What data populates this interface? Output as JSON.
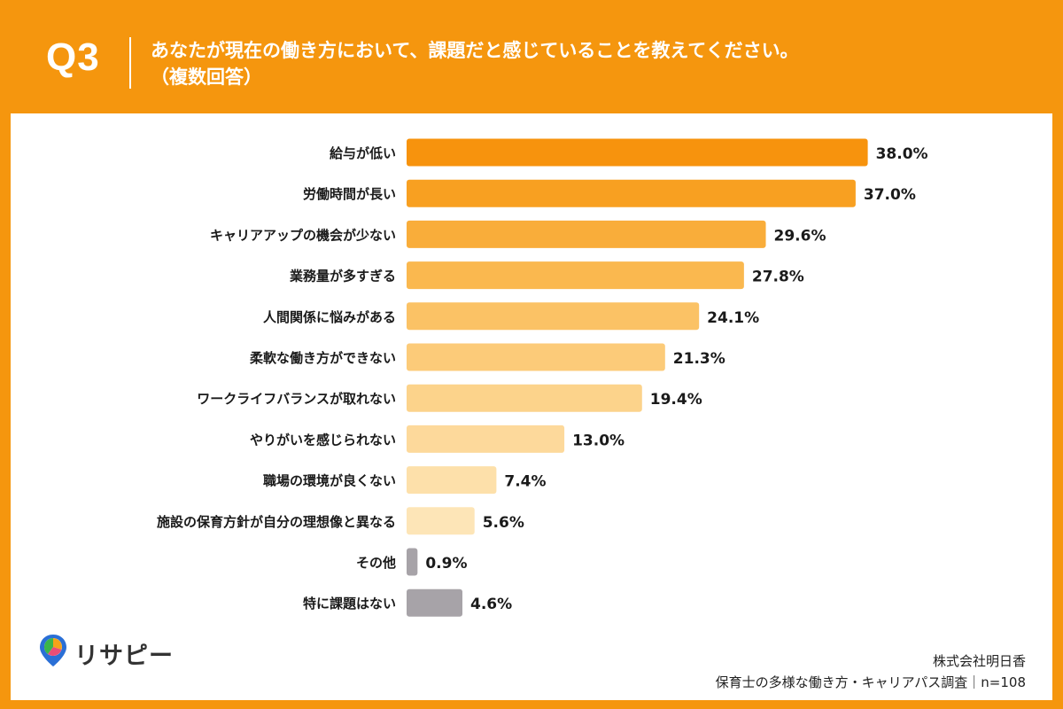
{
  "header": {
    "q_label": "Q3",
    "title_line1": "あなたが現在の働き方において、課題だと感じていることを教えてください。",
    "title_line2": "（複数回答）"
  },
  "colors": {
    "background": "#f5960e",
    "bar_gradient": [
      "#f7930d",
      "#f8a021",
      "#f9ad3a",
      "#fab84f",
      "#fbc265",
      "#fccb79",
      "#fcd38b",
      "#fdd99b",
      "#fde0aa",
      "#fde5b7"
    ],
    "gray_bar": "#a7a3a8"
  },
  "chart_data": {
    "type": "bar",
    "orientation": "horizontal",
    "categories": [
      "給与が低い",
      "労働時間が長い",
      "キャリアアップの機会が少ない",
      "業務量が多すぎる",
      "人間関係に悩みがある",
      "柔軟な働き方ができない",
      "ワークライフバランスが取れない",
      "やりがいを感じられない",
      "職場の環境が良くない",
      "施設の保育方針が自分の理想像と異なる",
      "その他",
      "特に課題はない"
    ],
    "values": [
      38.0,
      37.0,
      29.6,
      27.8,
      24.1,
      21.3,
      19.4,
      13.0,
      7.4,
      5.6,
      0.9,
      4.6
    ],
    "labels": [
      "38.0%",
      "37.0%",
      "29.6%",
      "27.8%",
      "24.1%",
      "21.3%",
      "19.4%",
      "13.0%",
      "7.4%",
      "5.6%",
      "0.9%",
      "4.6%"
    ],
    "xlim": [
      0,
      40
    ],
    "grid": false,
    "legend": "none"
  },
  "footer": {
    "logo_text": "リサピー",
    "company": "株式会社明日香",
    "source": "保育士の多様な働き方・キャリアパス調査｜n=108"
  }
}
